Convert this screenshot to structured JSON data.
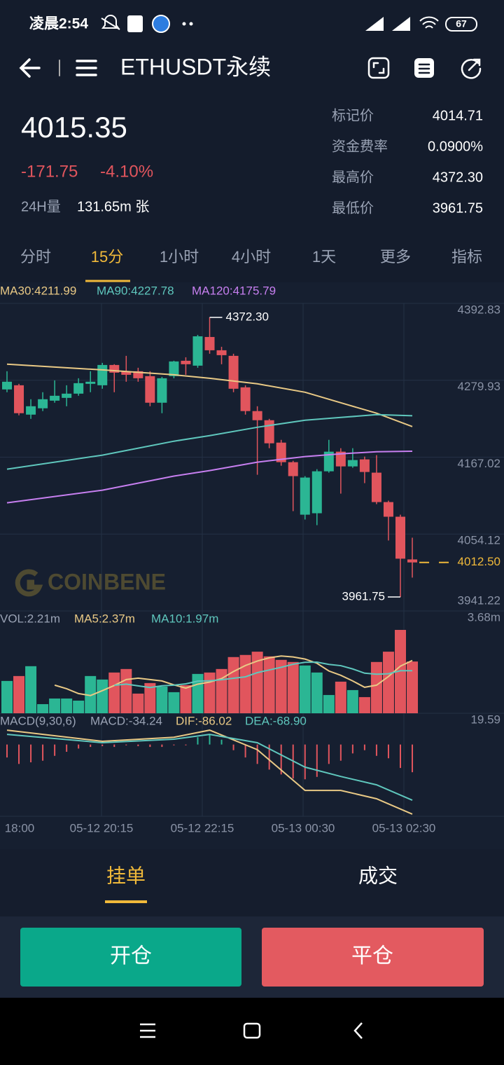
{
  "status_bar": {
    "time": "凌晨2:54",
    "battery": "67"
  },
  "header": {
    "title": "ETHUSDT永续"
  },
  "ticker": {
    "price": "4015.35",
    "change": "-171.75",
    "change_pct": "-4.10%",
    "volume_label": "24H量",
    "volume": "131.65m 张",
    "stats": [
      {
        "label": "标记价",
        "value": "4014.71"
      },
      {
        "label": "资金费率",
        "value": "0.0900%"
      },
      {
        "label": "最高价",
        "value": "4372.30"
      },
      {
        "label": "最低价",
        "value": "3961.75"
      }
    ]
  },
  "tabs": [
    "分时",
    "15分",
    "1小时",
    "4小时",
    "1天",
    "更多",
    "指标"
  ],
  "watermark": "COINBENE",
  "x_labels": [
    "18:00",
    "05-12 20:15",
    "05-12 22:15",
    "05-13 00:30",
    "05-13 02:30"
  ],
  "chart_data": [
    {
      "type": "candlestick",
      "up_color": "#2bb694",
      "down_color": "#e1555d",
      "ylim": [
        3941.22,
        4392.83
      ],
      "yticks": [
        4392.83,
        4279.93,
        4167.02,
        4054.12,
        3941.22
      ],
      "ohlc": [
        [
          4266.5,
          4293.2,
          4262.4,
          4277.8
        ],
        [
          4272.6,
          4274.7,
          4228.5,
          4231.6
        ],
        [
          4229.5,
          4252.1,
          4223.3,
          4241.8
        ],
        [
          4238.8,
          4262.4,
          4234.7,
          4252.1
        ],
        [
          4250.0,
          4279.8,
          4247.0,
          4257.2
        ],
        [
          4254.1,
          4272.6,
          4241.8,
          4260.3
        ],
        [
          4260.3,
          4282.9,
          4257.2,
          4275.7
        ],
        [
          4274.7,
          4293.2,
          4262.4,
          4277.8
        ],
        [
          4272.6,
          4305.5,
          4267.5,
          4302.4
        ],
        [
          4302.4,
          4303.5,
          4262.4,
          4291.1
        ],
        [
          4293.2,
          4315.8,
          4277.8,
          4288.0
        ],
        [
          4293.2,
          4298.3,
          4277.8,
          4282.9
        ],
        [
          4286.0,
          4293.2,
          4241.8,
          4247.0
        ],
        [
          4247.0,
          4284.9,
          4231.6,
          4282.9
        ],
        [
          4286.0,
          4308.6,
          4282.9,
          4307.6
        ],
        [
          4308.6,
          4313.7,
          4288.0,
          4303.5
        ],
        [
          4301.4,
          4346.6,
          4298.3,
          4344.5
        ],
        [
          4343.5,
          4372.3,
          4318.9,
          4324.0
        ],
        [
          4324.0,
          4329.1,
          4303.5,
          4316.8
        ],
        [
          4315.8,
          4318.9,
          4262.4,
          4267.5
        ],
        [
          4269.6,
          4272.6,
          4229.5,
          4234.7
        ],
        [
          4234.7,
          4241.8,
          4141.2,
          4221.3
        ],
        [
          4221.3,
          4223.3,
          4180.2,
          4187.4
        ],
        [
          4188.4,
          4192.5,
          4154.5,
          4159.7
        ],
        [
          4159.7,
          4161.7,
          4087.8,
          4139.2
        ],
        [
          4082.6,
          4139.2,
          4075.5,
          4137.1
        ],
        [
          4084.7,
          4149.4,
          4067.2,
          4146.3
        ],
        [
          4146.3,
          4192.5,
          4144.3,
          4175.1
        ],
        [
          4175.1,
          4180.2,
          4113.5,
          4153.5
        ],
        [
          4153.5,
          4180.2,
          4151.5,
          4162.8
        ],
        [
          4163.8,
          4167.9,
          4128.9,
          4145.3
        ],
        [
          4144.3,
          4170.0,
          4098.1,
          4101.1
        ],
        [
          4101.1,
          4103.2,
          4044.7,
          4079.6
        ],
        [
          4079.6,
          4082.6,
          3961.75,
          4018.0
        ],
        [
          4016.9,
          4048.8,
          3990.2,
          4012.5
        ]
      ],
      "series": [
        {
          "name": "MA30:4211.99",
          "color": "#e9c985",
          "x": [
            0,
            8,
            14,
            17,
            21,
            25,
            28,
            31,
            34
          ],
          "values": [
            4303.5,
            4295.2,
            4288.0,
            4282.9,
            4274.7,
            4262.4,
            4247.0,
            4231.6,
            4211.99
          ]
        },
        {
          "name": "MA90:4227.78",
          "color": "#5fc7bd",
          "x": [
            0,
            8,
            14,
            17,
            21,
            25,
            28,
            31,
            34
          ],
          "values": [
            4149.4,
            4170.0,
            4190.5,
            4198.7,
            4211.0,
            4221.3,
            4225.4,
            4229.5,
            4227.78
          ]
        },
        {
          "name": "MA120:4175.79",
          "color": "#c77ff0",
          "x": [
            0,
            8,
            14,
            17,
            21,
            25,
            28,
            31,
            34
          ],
          "values": [
            4100.1,
            4118.6,
            4139.2,
            4147.4,
            4159.7,
            4168.0,
            4172.0,
            4175.1,
            4175.79
          ]
        }
      ],
      "high": {
        "value": 4372.3,
        "label": "4372.30"
      },
      "low": {
        "value": 3961.75,
        "label": "3961.75"
      },
      "current": {
        "value": 4012.5,
        "label": "4012.50",
        "color": "#f0b93a"
      }
    },
    {
      "type": "bar",
      "title": "VOL:2.21m",
      "ylim": [
        0,
        3.68
      ],
      "yticks": [
        {
          "value": 3.68,
          "label": "3.68m"
        }
      ],
      "values": [
        1.38,
        1.59,
        2.01,
        0.39,
        0.63,
        0.63,
        0.54,
        1.59,
        1.44,
        1.74,
        1.89,
        0.84,
        1.29,
        1.14,
        0.9,
        1.2,
        1.68,
        1.74,
        1.89,
        2.4,
        2.49,
        2.63,
        2.43,
        2.28,
        2.19,
        2.04,
        1.74,
        0.78,
        1.35,
        0.99,
        0.69,
        2.19,
        2.63,
        3.56,
        2.21
      ],
      "series": [
        {
          "name": "MA5:2.37m",
          "color": "#e9c985",
          "period": 5
        },
        {
          "name": "MA10:1.97m",
          "color": "#5fc7bd",
          "period": 10
        }
      ]
    },
    {
      "type": "macd",
      "title": "MACD(9,30,6)",
      "value_label": "MACD:-34.24",
      "ylim": [
        -88.7,
        19.59
      ],
      "yticks": [
        19.59
      ],
      "values": [
        -16,
        -24,
        -22,
        -20,
        -14,
        -9,
        -5,
        -3,
        -2,
        -3,
        -1,
        -2,
        -3,
        -3,
        -1,
        -1,
        9,
        12,
        6,
        -7,
        -16,
        -24,
        -31,
        -37,
        -42,
        -43,
        -40,
        -24,
        -20,
        -11,
        -7,
        -14,
        -17,
        -29,
        -34.24
      ],
      "series": [
        {
          "name": "DIF:-86.02",
          "color": "#e9c985",
          "x": [
            0,
            8,
            14,
            17,
            21,
            25,
            28,
            31,
            34
          ],
          "values": [
            17.8,
            4,
            9,
            17.8,
            -6.4,
            -56.7,
            -56.7,
            -67,
            -86.02
          ]
        },
        {
          "name": "DEA:-68.90",
          "color": "#5fc7bd",
          "x": [
            0,
            8,
            14,
            17,
            21,
            25,
            28,
            31,
            34
          ],
          "values": [
            12.6,
            2.3,
            6.6,
            12.6,
            2.3,
            -28,
            -39.5,
            -49.8,
            -68.9
          ]
        }
      ]
    }
  ],
  "order_tabs": [
    "挂单",
    "成交"
  ],
  "buttons": [
    "开仓",
    "平仓"
  ]
}
